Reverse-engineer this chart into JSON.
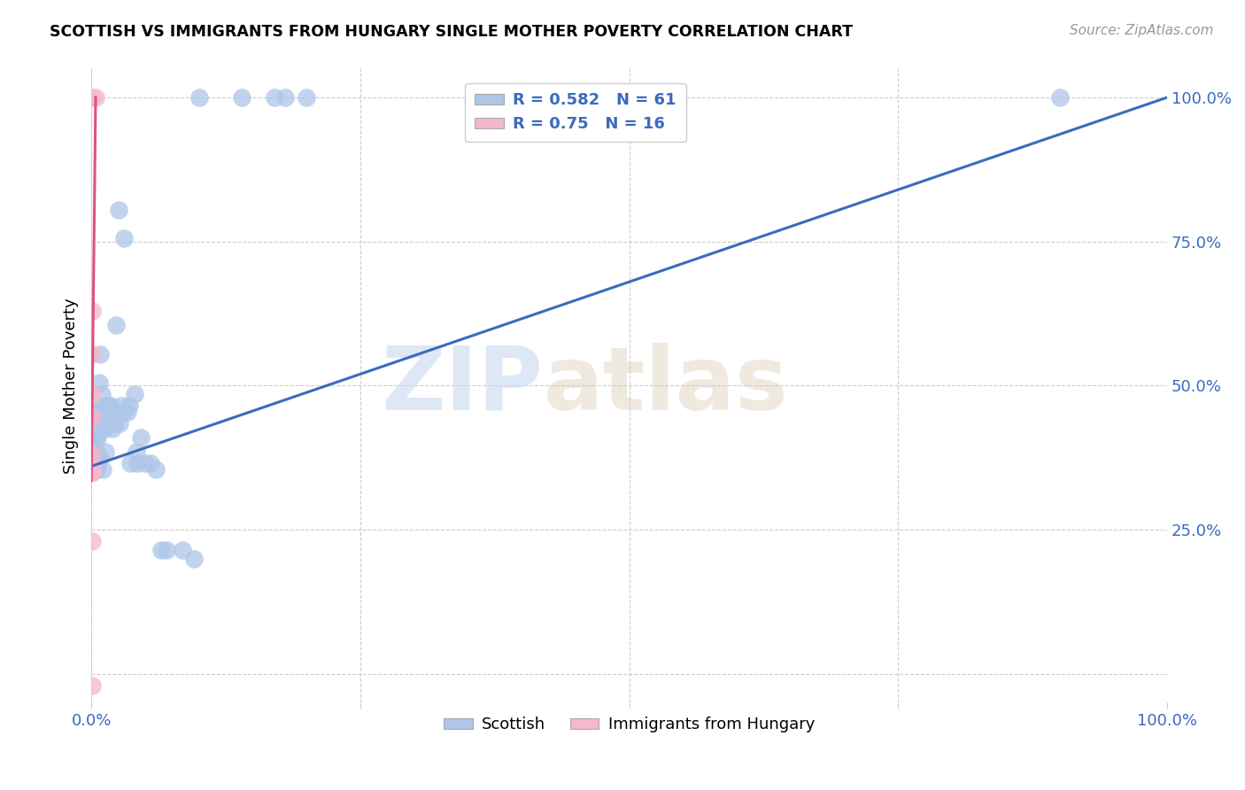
{
  "title": "SCOTTISH VS IMMIGRANTS FROM HUNGARY SINGLE MOTHER POVERTY CORRELATION CHART",
  "source": "Source: ZipAtlas.com",
  "ylabel": "Single Mother Poverty",
  "xlim": [
    0,
    1
  ],
  "ylim": [
    -0.05,
    1.05
  ],
  "blue_R": 0.582,
  "blue_N": 61,
  "pink_R": 0.75,
  "pink_N": 16,
  "blue_color": "#aec6e8",
  "blue_line_color": "#3a6bbf",
  "pink_color": "#f5b8ca",
  "pink_line_color": "#e05080",
  "legend_text_color": "#3a6bbf",
  "watermark_zip": "ZIP",
  "watermark_atlas": "atlas",
  "scatter_blue": [
    [
      0.001,
      0.355
    ],
    [
      0.002,
      0.38
    ],
    [
      0.003,
      0.46
    ],
    [
      0.003,
      0.415
    ],
    [
      0.004,
      0.37
    ],
    [
      0.004,
      0.455
    ],
    [
      0.004,
      0.355
    ],
    [
      0.004,
      0.41
    ],
    [
      0.005,
      0.435
    ],
    [
      0.005,
      0.385
    ],
    [
      0.005,
      0.355
    ],
    [
      0.006,
      0.41
    ],
    [
      0.006,
      0.375
    ],
    [
      0.006,
      0.36
    ],
    [
      0.007,
      0.505
    ],
    [
      0.007,
      0.425
    ],
    [
      0.008,
      0.555
    ],
    [
      0.008,
      0.375
    ],
    [
      0.009,
      0.455
    ],
    [
      0.01,
      0.485
    ],
    [
      0.011,
      0.355
    ],
    [
      0.012,
      0.465
    ],
    [
      0.012,
      0.425
    ],
    [
      0.013,
      0.455
    ],
    [
      0.013,
      0.385
    ],
    [
      0.015,
      0.465
    ],
    [
      0.015,
      0.435
    ],
    [
      0.016,
      0.435
    ],
    [
      0.017,
      0.465
    ],
    [
      0.018,
      0.465
    ],
    [
      0.018,
      0.435
    ],
    [
      0.019,
      0.445
    ],
    [
      0.02,
      0.425
    ],
    [
      0.021,
      0.445
    ],
    [
      0.022,
      0.435
    ],
    [
      0.023,
      0.605
    ],
    [
      0.025,
      0.805
    ],
    [
      0.026,
      0.435
    ],
    [
      0.028,
      0.465
    ],
    [
      0.03,
      0.755
    ],
    [
      0.03,
      0.455
    ],
    [
      0.034,
      0.455
    ],
    [
      0.035,
      0.465
    ],
    [
      0.036,
      0.365
    ],
    [
      0.04,
      0.485
    ],
    [
      0.042,
      0.385
    ],
    [
      0.043,
      0.365
    ],
    [
      0.046,
      0.41
    ],
    [
      0.05,
      0.365
    ],
    [
      0.055,
      0.365
    ],
    [
      0.06,
      0.355
    ],
    [
      0.065,
      0.215
    ],
    [
      0.07,
      0.215
    ],
    [
      0.085,
      0.215
    ],
    [
      0.095,
      0.2
    ],
    [
      0.1,
      1.0
    ],
    [
      0.14,
      1.0
    ],
    [
      0.17,
      1.0
    ],
    [
      0.18,
      1.0
    ],
    [
      0.2,
      1.0
    ],
    [
      0.9,
      1.0
    ]
  ],
  "scatter_pink": [
    [
      0.001,
      1.0
    ],
    [
      0.004,
      1.0
    ],
    [
      0.001,
      0.63
    ],
    [
      0.001,
      0.555
    ],
    [
      0.001,
      0.485
    ],
    [
      0.001,
      0.445
    ],
    [
      0.001,
      0.38
    ],
    [
      0.001,
      0.36
    ],
    [
      0.001,
      0.355
    ],
    [
      0.001,
      0.355
    ],
    [
      0.001,
      0.35
    ],
    [
      0.001,
      0.35
    ],
    [
      0.001,
      0.35
    ],
    [
      0.001,
      0.35
    ],
    [
      0.001,
      0.23
    ],
    [
      0.001,
      -0.02
    ]
  ],
  "blue_line": [
    [
      0,
      0.36
    ],
    [
      1.0,
      1.0
    ]
  ],
  "pink_line": [
    [
      0,
      0.335
    ],
    [
      0.004,
      1.0
    ]
  ]
}
